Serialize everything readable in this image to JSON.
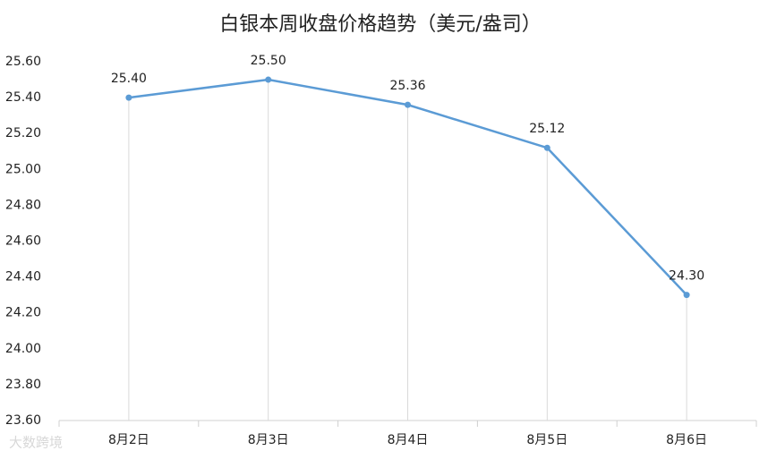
{
  "chart_data": {
    "type": "line",
    "title": "白银本周收盘价格趋势（美元/盎司）",
    "categories": [
      "8月2日",
      "8月3日",
      "8月4日",
      "8月5日",
      "8月6日"
    ],
    "values": [
      25.4,
      25.5,
      25.36,
      25.12,
      24.3
    ],
    "value_labels": [
      "25.40",
      "25.50",
      "25.36",
      "25.12",
      "24.30"
    ],
    "color": "#5b9bd5",
    "ylim": [
      23.6,
      25.6
    ],
    "yticks": [
      {
        "value": 23.6,
        "label": "23.60"
      },
      {
        "value": 23.8,
        "label": "23.80"
      },
      {
        "value": 24.0,
        "label": "24.00"
      },
      {
        "value": 24.2,
        "label": "24.20"
      },
      {
        "value": 24.4,
        "label": "24.40"
      },
      {
        "value": 24.6,
        "label": "24.60"
      },
      {
        "value": 24.8,
        "label": "24.80"
      },
      {
        "value": 25.0,
        "label": "25.00"
      },
      {
        "value": 25.2,
        "label": "25.20"
      },
      {
        "value": 25.4,
        "label": "25.40"
      },
      {
        "value": 25.6,
        "label": "25.60"
      }
    ],
    "drop_lines": true
  },
  "watermark": "大数跨境"
}
